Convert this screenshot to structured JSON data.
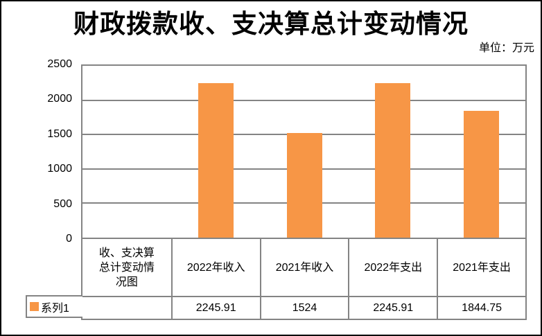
{
  "page": {
    "title": "财政拨款收、支决算总计变动情况",
    "unit_label": "单位：万元"
  },
  "chart_data": {
    "type": "bar",
    "title": "财政拨款收、支决算总计变动情况",
    "unit": "单位：万元",
    "categories": [
      "收、支决算总计变动情况图",
      "2022年收入",
      "2021年收入",
      "2022年支出",
      "2021年支出"
    ],
    "series": [
      {
        "name": "系列1",
        "values": [
          null,
          2245.91,
          1524,
          2245.91,
          1844.75
        ],
        "display_values": [
          "",
          "2245.91",
          "1524",
          "2245.91",
          "1844.75"
        ]
      }
    ],
    "ylim": [
      0,
      2500
    ],
    "yticks": [
      0,
      500,
      1000,
      1500,
      2000,
      2500
    ],
    "grid": true,
    "data_table_shown": true,
    "legend_position": "bottom-left",
    "colors": {
      "bar": "#F79646",
      "grid": "#848484",
      "frame_border": "#000000",
      "text": "#000000",
      "background": "#FFFFFF"
    }
  }
}
